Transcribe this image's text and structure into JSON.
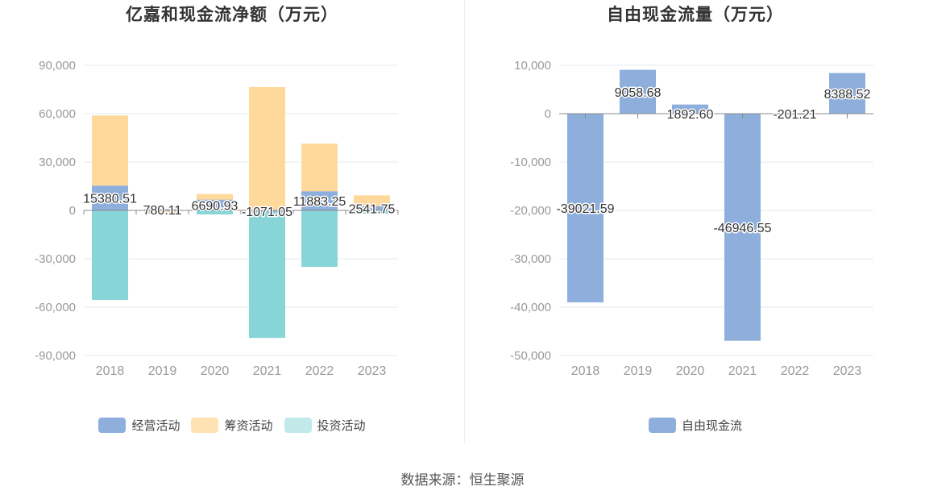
{
  "source_text": "数据来源：恒生聚源",
  "chart_data": [
    {
      "type": "bar",
      "stacked": true,
      "title": "亿嘉和现金流净额（万元）",
      "categories": [
        "2018",
        "2019",
        "2020",
        "2021",
        "2022",
        "2023"
      ],
      "ylim": [
        -90000,
        90000
      ],
      "yticks": [
        90000,
        60000,
        30000,
        0,
        -30000,
        -60000,
        -90000
      ],
      "ytick_labels": [
        "90,000",
        "60,000",
        "30,000",
        "0",
        "-30,000",
        "-60,000",
        "-90,000"
      ],
      "legend_position": "bottom",
      "series": [
        {
          "name": "经营活动",
          "color": "#8eaedc",
          "values": [
            15380.51,
            780.11,
            6690.93,
            -1071.05,
            11883.25,
            2541.75
          ]
        },
        {
          "name": "筹资活动",
          "color": "#ffd99c",
          "values": [
            43500,
            -1200,
            3500,
            76500,
            29500,
            6800
          ]
        },
        {
          "name": "投资活动",
          "color": "#88d5d8",
          "values": [
            -55500,
            -700,
            -2500,
            -78000,
            -35000,
            -2000
          ]
        }
      ],
      "data_labels": [
        "15380.51",
        "780.11",
        "6690.93",
        "-1071.05",
        "11883.25",
        "2541.75"
      ],
      "legend_colors": [
        "#8eaedc",
        "#ffe2b3",
        "#c2e9ea"
      ]
    },
    {
      "type": "bar",
      "title": "自由现金流量（万元）",
      "categories": [
        "2018",
        "2019",
        "2020",
        "2021",
        "2022",
        "2023"
      ],
      "ylim": [
        -50000,
        10000
      ],
      "yticks": [
        10000,
        0,
        -10000,
        -20000,
        -30000,
        -40000,
        -50000
      ],
      "ytick_labels": [
        "10,000",
        "0",
        "-10,000",
        "-20,000",
        "-30,000",
        "-40,000",
        "-50,000"
      ],
      "legend_position": "bottom",
      "series": [
        {
          "name": "自由现金流",
          "color": "#8eaedc",
          "values": [
            -39021.59,
            9058.68,
            1892.6,
            -46946.55,
            -201.21,
            8388.52
          ]
        }
      ],
      "data_labels": [
        "-39021.59",
        "9058.68",
        "1892.60",
        "-46946.55",
        "-201.21",
        "8388.52"
      ],
      "legend_colors": [
        "#8eaedc"
      ]
    }
  ]
}
